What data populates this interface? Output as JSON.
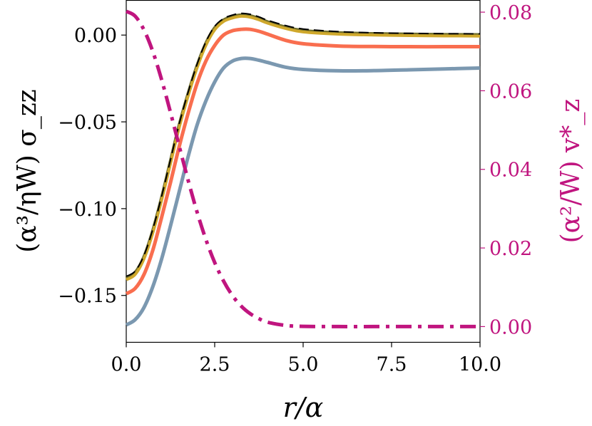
{
  "chart_data": {
    "type": "line",
    "title": "",
    "xlabel": "r/α",
    "ylabel_left": "(α³/ηW) σ_zz",
    "ylabel_right": "(α²/W) v*_z",
    "xlim": [
      0,
      10
    ],
    "ylim_left": [
      -0.177,
      0.02
    ],
    "ylim_right": [
      -0.004,
      0.083
    ],
    "x_ticks": [
      0,
      2.5,
      5,
      7.5,
      10
    ],
    "x_tick_labels": [
      "0.0",
      "2.5",
      "5.0",
      "7.5",
      "10.0"
    ],
    "y_left_ticks": [
      0,
      -0.05,
      -0.1,
      -0.15
    ],
    "y_left_tick_labels": [
      "0.00",
      "−0.05",
      "−0.10",
      "−0.15"
    ],
    "y_right_ticks": [
      0,
      0.02,
      0.04,
      0.06,
      0.08
    ],
    "y_right_tick_labels": [
      "0.00",
      "0.02",
      "0.04",
      "0.06",
      "0.08"
    ],
    "grid": false,
    "colors": {
      "axis_left": "#000000",
      "axis_right": "#c0157f"
    },
    "series": [
      {
        "name": "sigma_zz_blue",
        "axis": "left",
        "color": "#7b98b0",
        "style": "solid",
        "x": [
          0,
          0.25,
          0.5,
          0.75,
          1,
          1.25,
          1.5,
          1.75,
          2,
          2.25,
          2.5,
          2.75,
          3,
          3.25,
          3.5,
          3.75,
          4,
          4.5,
          5,
          6,
          7,
          8,
          9,
          10
        ],
        "y": [
          -0.167,
          -0.164,
          -0.157,
          -0.145,
          -0.129,
          -0.11,
          -0.09,
          -0.07,
          -0.052,
          -0.038,
          -0.027,
          -0.019,
          -0.015,
          -0.0135,
          -0.0135,
          -0.0145,
          -0.0158,
          -0.0185,
          -0.0198,
          -0.0206,
          -0.0205,
          -0.02,
          -0.0195,
          -0.019
        ]
      },
      {
        "name": "sigma_zz_orange",
        "axis": "left",
        "color": "#f96e4f",
        "style": "solid",
        "x": [
          0,
          0.25,
          0.5,
          0.75,
          1,
          1.25,
          1.5,
          1.75,
          2,
          2.25,
          2.5,
          2.75,
          3,
          3.25,
          3.5,
          3.75,
          4,
          4.5,
          5,
          6,
          7,
          8,
          9,
          10
        ],
        "y": [
          -0.149,
          -0.146,
          -0.138,
          -0.124,
          -0.105,
          -0.085,
          -0.064,
          -0.045,
          -0.028,
          -0.015,
          -0.006,
          0.0,
          0.0025,
          0.0033,
          0.0033,
          0.0022,
          0.0005,
          -0.003,
          -0.005,
          -0.0063,
          -0.0066,
          -0.0067,
          -0.0067,
          -0.0067
        ]
      },
      {
        "name": "sigma_zz_olive",
        "axis": "left",
        "color": "#6e6d2b",
        "style": "solid",
        "x": [
          0,
          0.25,
          0.5,
          0.75,
          1,
          1.25,
          1.5,
          1.75,
          2,
          2.25,
          2.5,
          2.75,
          3,
          3.25,
          3.5,
          3.75,
          4,
          4.5,
          5,
          6,
          7,
          8,
          9,
          10
        ],
        "y": [
          -0.14,
          -0.137,
          -0.128,
          -0.113,
          -0.094,
          -0.073,
          -0.052,
          -0.034,
          -0.018,
          -0.005,
          0.004,
          0.0085,
          0.0105,
          0.0115,
          0.011,
          0.0095,
          0.0075,
          0.0045,
          0.0025,
          0.0012,
          0.0007,
          0.0004,
          0.0002,
          0.0001
        ]
      },
      {
        "name": "sigma_zz_gold",
        "axis": "left",
        "color": "#cfa82c",
        "style": "solid",
        "x": [
          0,
          0.25,
          0.5,
          0.75,
          1,
          1.25,
          1.5,
          1.75,
          2,
          2.25,
          2.5,
          2.75,
          3,
          3.25,
          3.5,
          3.75,
          4,
          4.5,
          5,
          6,
          7,
          8,
          9,
          10
        ],
        "y": [
          -0.141,
          -0.138,
          -0.129,
          -0.114,
          -0.095,
          -0.074,
          -0.053,
          -0.035,
          -0.019,
          -0.006,
          0.003,
          0.0078,
          0.0098,
          0.0108,
          0.0103,
          0.0088,
          0.0068,
          0.0038,
          0.0018,
          0.0005,
          0.0,
          -0.0003,
          -0.0005,
          -0.0006
        ]
      },
      {
        "name": "sigma_zz_black_dashed",
        "axis": "left",
        "color": "#000000",
        "style": "dashed",
        "x": [
          0,
          0.25,
          0.5,
          0.75,
          1,
          1.25,
          1.5,
          1.75,
          2,
          2.25,
          2.5,
          2.75,
          3,
          3.25,
          3.5,
          3.75,
          4,
          4.5,
          5,
          6,
          7,
          8,
          9,
          10
        ],
        "y": [
          -0.139,
          -0.136,
          -0.127,
          -0.112,
          -0.093,
          -0.072,
          -0.051,
          -0.033,
          -0.017,
          -0.004,
          0.005,
          0.0095,
          0.0115,
          0.0125,
          0.012,
          0.0105,
          0.0085,
          0.0055,
          0.0035,
          0.002,
          0.0013,
          0.001,
          0.0008,
          0.0007
        ]
      },
      {
        "name": "v_z_star",
        "axis": "right",
        "color": "#c0157f",
        "style": "dashdot",
        "x": [
          0,
          0.25,
          0.5,
          0.75,
          1,
          1.25,
          1.5,
          1.75,
          2,
          2.25,
          2.5,
          2.75,
          3,
          3.25,
          3.5,
          3.75,
          4,
          4.5,
          5,
          6,
          7,
          8,
          9,
          10
        ],
        "y": [
          0.0802,
          0.079,
          0.0755,
          0.07,
          0.0628,
          0.0545,
          0.0458,
          0.0372,
          0.0292,
          0.0222,
          0.0163,
          0.0116,
          0.0079,
          0.0052,
          0.0033,
          0.002,
          0.0011,
          0.0003,
          5e-05,
          0,
          0,
          0,
          0,
          0
        ]
      }
    ]
  }
}
